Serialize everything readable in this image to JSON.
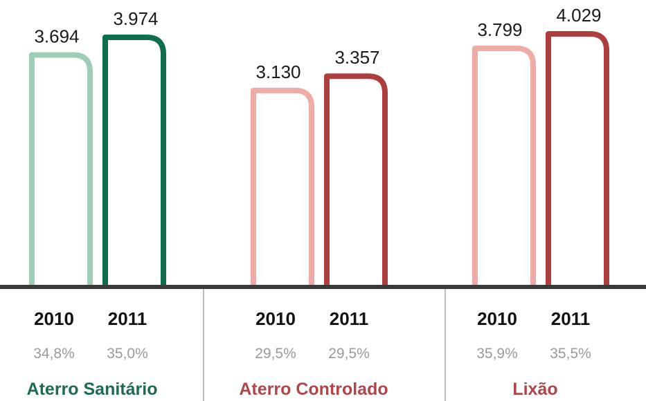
{
  "chart_data": {
    "type": "bar",
    "groups": [
      {
        "name": "Aterro Sanitário",
        "color": "#1e6b52",
        "bars": [
          {
            "year": "2010",
            "value": 3694,
            "value_label": "3.694",
            "percent": "34,8%",
            "color": "#9fcdb8"
          },
          {
            "year": "2011",
            "value": 3974,
            "value_label": "3.974",
            "percent": "35,0%",
            "color": "#0e6e4f"
          }
        ]
      },
      {
        "name": "Aterro Controlado",
        "color": "#b0464a",
        "bars": [
          {
            "year": "2010",
            "value": 3130,
            "value_label": "3.130",
            "percent": "29,5%",
            "color": "#efaca6"
          },
          {
            "year": "2011",
            "value": 3357,
            "value_label": "3.357",
            "percent": "29,5%",
            "color": "#ac3f3d"
          }
        ]
      },
      {
        "name": "Lixão",
        "color": "#b0464a",
        "bars": [
          {
            "year": "2010",
            "value": 3799,
            "value_label": "3.799",
            "percent": "35,9%",
            "color": "#efaca6"
          },
          {
            "year": "2011",
            "value": 4029,
            "value_label": "4.029",
            "percent": "35,5%",
            "color": "#ac3f3d"
          }
        ]
      }
    ],
    "y_range": [
      0,
      4200
    ],
    "grid": false,
    "legend": "none"
  }
}
